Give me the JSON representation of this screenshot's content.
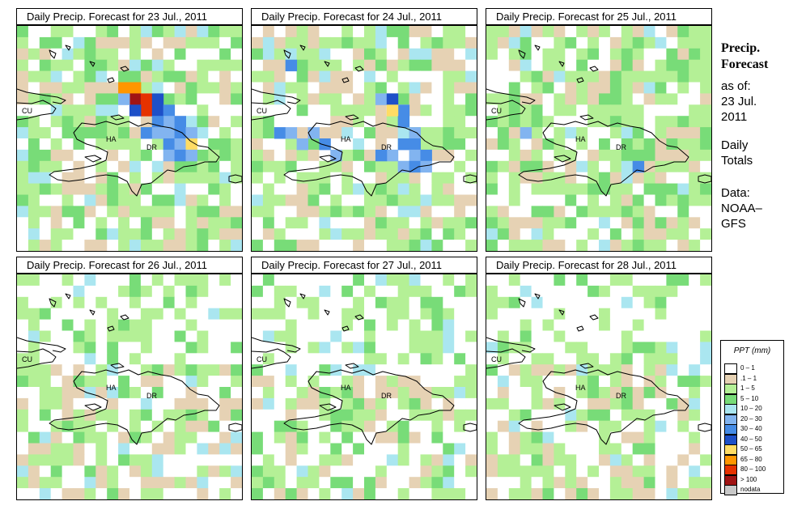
{
  "panels": [
    {
      "title": "Daily Precip. Forecast for  23 Jul., 2011"
    },
    {
      "title": "Daily Precip. Forecast for  24 Jul., 2011"
    },
    {
      "title": "Daily Precip. Forecast for  25 Jul., 2011"
    },
    {
      "title": "Daily Precip. Forecast for  26 Jul., 2011"
    },
    {
      "title": "Daily Precip. Forecast for  27 Jul., 2011"
    },
    {
      "title": "Daily Precip. Forecast for  28 Jul., 2011"
    }
  ],
  "map_labels": {
    "cu": "CU",
    "ha": "HA",
    "dr": "DR"
  },
  "sidebar": {
    "heading_line1": "Precip.",
    "heading_line2": "Forecast",
    "as_of": "as of:",
    "date_line1": "23 Jul.",
    "date_line2": "2011",
    "totals_line1": "Daily",
    "totals_line2": "Totals",
    "data_line1": "Data:",
    "data_line2": "NOAA–",
    "data_line3": "GFS"
  },
  "legend": {
    "title": "PPT (mm)",
    "items": [
      {
        "label": "0 – 1",
        "color": "#ffffff"
      },
      {
        "label": ".1 – 1",
        "color": "#e6d2b4"
      },
      {
        "label": "1 – 5",
        "color": "#b4f096"
      },
      {
        "label": "5 – 10",
        "color": "#78dc78"
      },
      {
        "label": "10 – 20",
        "color": "#aae6f0"
      },
      {
        "label": "20 – 30",
        "color": "#82b4f0"
      },
      {
        "label": "30 – 40",
        "color": "#468ce6"
      },
      {
        "label": "40 – 50",
        "color": "#1e50c8"
      },
      {
        "label": "50 – 65",
        "color": "#ffdc64"
      },
      {
        "label": "65 – 80",
        "color": "#ff9600"
      },
      {
        "label": "80 – 100",
        "color": "#e63200"
      },
      {
        "label": "> 100",
        "color": "#a01414"
      },
      {
        "label": "nodata",
        "color": "#c8c8c8"
      }
    ]
  }
}
